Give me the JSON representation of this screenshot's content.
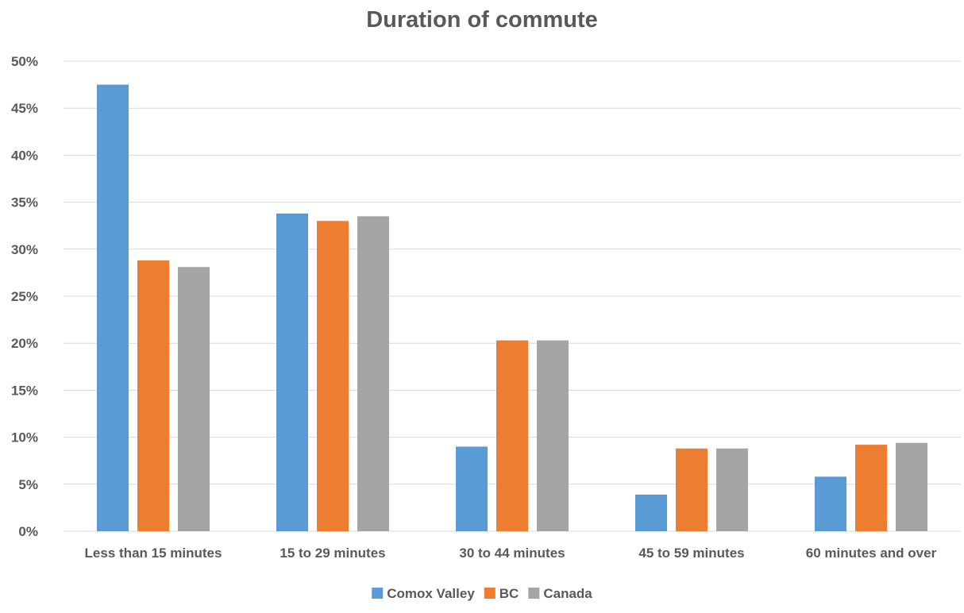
{
  "chart_data": {
    "type": "bar",
    "title": "Duration of commute",
    "xlabel": "",
    "ylabel": "",
    "categories": [
      "Less than 15 minutes",
      "15 to 29 minutes",
      "30 to 44 minutes",
      "45 to 59 minutes",
      "60 minutes and over"
    ],
    "series": [
      {
        "name": "Comox Valley",
        "color": "#5B9BD5",
        "values": [
          47.5,
          33.8,
          9.0,
          3.9,
          5.8
        ]
      },
      {
        "name": "BC",
        "color": "#ED7D31",
        "values": [
          28.8,
          33.0,
          20.3,
          8.8,
          9.2
        ]
      },
      {
        "name": "Canada",
        "color": "#A5A5A5",
        "values": [
          28.1,
          33.5,
          20.3,
          8.8,
          9.4
        ]
      }
    ],
    "ylim": [
      0,
      50
    ],
    "yticks": [
      0,
      5,
      10,
      15,
      20,
      25,
      30,
      35,
      40,
      45,
      50
    ],
    "ytick_labels": [
      "0%",
      "5%",
      "10%",
      "15%",
      "20%",
      "25%",
      "30%",
      "35%",
      "40%",
      "45%",
      "50%"
    ],
    "grid": true,
    "legend_position": "bottom",
    "text_color": "#595959",
    "grid_color": "#D9D9D9"
  }
}
